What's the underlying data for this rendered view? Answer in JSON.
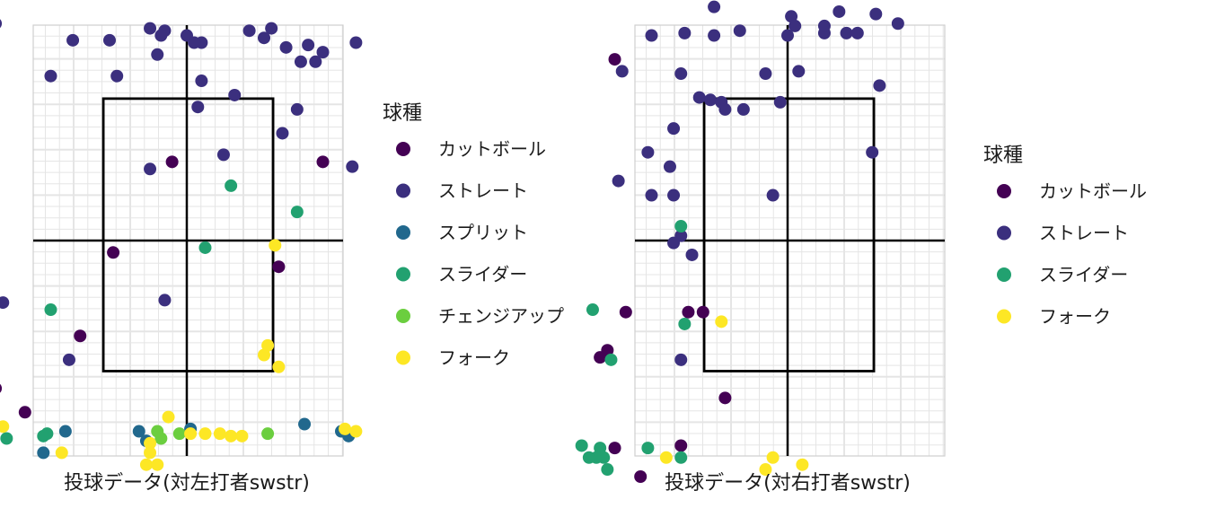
{
  "colors": {
    "カットボール": "#440154",
    "ストレート": "#3B2F7E",
    "スプリット": "#21688D",
    "スライダー": "#22A170",
    "チェンジアップ": "#6BCE3F",
    "フォーク": "#FDE725"
  },
  "chart_data": [
    {
      "type": "scatter",
      "xlabel": "投球データ(対左打者swstr)",
      "ylabel": "",
      "legend_title": "球種",
      "legend": [
        "カットボール",
        "ストレート",
        "スプリット",
        "スライダー",
        "チェンジアップ",
        "フォーク"
      ],
      "series": [
        {
          "name": "カットボール",
          "points": [
            [
              -2.9,
              0.65
            ],
            [
              -0.2,
              1.65
            ],
            [
              1.85,
              1.65
            ],
            [
              -1.0,
              -0.25
            ],
            [
              1.25,
              -0.55
            ],
            [
              -2.7,
              -1.25
            ],
            [
              -1.45,
              -2.0
            ],
            [
              -2.6,
              -3.1
            ],
            [
              -2.2,
              -3.6
            ]
          ]
        },
        {
          "name": "ストレート",
          "points": [
            [
              -2.6,
              4.55
            ],
            [
              -3.0,
              4.15
            ],
            [
              -1.55,
              4.2
            ],
            [
              -1.05,
              4.2
            ],
            [
              -0.5,
              4.45
            ],
            [
              -0.3,
              4.4
            ],
            [
              0.0,
              4.3
            ],
            [
              -0.35,
              4.3
            ],
            [
              0.2,
              4.15
            ],
            [
              0.1,
              4.15
            ],
            [
              0.85,
              4.4
            ],
            [
              1.05,
              4.25
            ],
            [
              1.15,
              4.45
            ],
            [
              1.35,
              4.05
            ],
            [
              1.65,
              4.1
            ],
            [
              1.85,
              3.95
            ],
            [
              2.3,
              4.15
            ],
            [
              1.55,
              3.75
            ],
            [
              1.75,
              3.75
            ],
            [
              -0.4,
              3.9
            ],
            [
              -1.85,
              3.45
            ],
            [
              -0.95,
              3.45
            ],
            [
              0.2,
              3.35
            ],
            [
              0.65,
              3.05
            ],
            [
              0.15,
              2.8
            ],
            [
              1.5,
              2.75
            ],
            [
              1.3,
              2.25
            ],
            [
              0.5,
              1.8
            ],
            [
              -0.5,
              1.5
            ],
            [
              2.25,
              1.55
            ],
            [
              -0.3,
              -1.25
            ],
            [
              -2.5,
              -1.3
            ],
            [
              -1.6,
              -2.5
            ]
          ]
        },
        {
          "name": "スプリット",
          "points": [
            [
              -1.65,
              -4.0
            ],
            [
              -0.65,
              -4.0
            ],
            [
              -0.55,
              -4.2
            ],
            [
              0.05,
              -3.95
            ],
            [
              1.6,
              -3.85
            ],
            [
              2.1,
              -4.0
            ],
            [
              2.2,
              -4.1
            ],
            [
              -1.95,
              -4.45
            ]
          ]
        },
        {
          "name": "スライダー",
          "points": [
            [
              -3.6,
              1.75
            ],
            [
              0.6,
              1.15
            ],
            [
              1.5,
              0.6
            ],
            [
              0.25,
              -0.15
            ],
            [
              -1.85,
              -1.45
            ],
            [
              -3.2,
              -3.2
            ],
            [
              -3.1,
              -3.15
            ],
            [
              -2.45,
              -4.15
            ],
            [
              -1.9,
              -4.05
            ],
            [
              -1.95,
              -4.1
            ]
          ]
        },
        {
          "name": "チェンジアップ",
          "points": [
            [
              1.1,
              -4.05
            ],
            [
              -0.1,
              -4.05
            ],
            [
              -0.35,
              -4.15
            ],
            [
              -0.4,
              -4.0
            ]
          ]
        },
        {
          "name": "フォーク",
          "points": [
            [
              1.2,
              -0.1
            ],
            [
              1.25,
              -2.65
            ],
            [
              1.1,
              -2.2
            ],
            [
              1.05,
              -2.4
            ],
            [
              -2.5,
              -3.9
            ],
            [
              -0.25,
              -3.7
            ],
            [
              0.05,
              -4.05
            ],
            [
              0.25,
              -4.05
            ],
            [
              0.45,
              -4.05
            ],
            [
              0.6,
              -4.1
            ],
            [
              0.75,
              -4.1
            ],
            [
              2.15,
              -3.95
            ],
            [
              2.3,
              -4.0
            ],
            [
              -1.7,
              -4.45
            ],
            [
              -0.5,
              -4.25
            ],
            [
              -0.5,
              -4.45
            ],
            [
              -0.55,
              -4.7
            ],
            [
              -0.4,
              -4.7
            ]
          ]
        }
      ]
    },
    {
      "type": "scatter",
      "xlabel": "投球データ(対右打者swstr)",
      "ylabel": "",
      "legend_title": "球種",
      "legend": [
        "カットボール",
        "ストレート",
        "スライダー",
        "フォーク"
      ],
      "series": [
        {
          "name": "カットボール",
          "points": [
            [
              -2.35,
              3.8
            ],
            [
              -2.2,
              -1.5
            ],
            [
              -1.35,
              -1.5
            ],
            [
              -1.15,
              -1.5
            ],
            [
              -2.45,
              -2.3
            ],
            [
              -2.55,
              -2.45
            ],
            [
              -0.85,
              -3.3
            ],
            [
              -1.45,
              -4.3
            ],
            [
              -2.35,
              -4.35
            ],
            [
              -2.0,
              -4.95
            ]
          ]
        },
        {
          "name": "ストレート",
          "points": [
            [
              -1.0,
              4.9
            ],
            [
              0.05,
              4.7
            ],
            [
              0.7,
              4.8
            ],
            [
              1.2,
              4.75
            ],
            [
              1.5,
              4.55
            ],
            [
              -1.85,
              4.3
            ],
            [
              -1.4,
              4.35
            ],
            [
              -1.0,
              4.3
            ],
            [
              -0.65,
              4.4
            ],
            [
              0.0,
              4.3
            ],
            [
              0.1,
              4.5
            ],
            [
              0.5,
              4.35
            ],
            [
              0.5,
              4.5
            ],
            [
              0.8,
              4.35
            ],
            [
              0.95,
              4.35
            ],
            [
              -2.25,
              3.55
            ],
            [
              -1.45,
              3.5
            ],
            [
              -0.3,
              3.5
            ],
            [
              0.15,
              3.55
            ],
            [
              1.25,
              3.25
            ],
            [
              -1.2,
              3.0
            ],
            [
              -1.05,
              2.95
            ],
            [
              -0.9,
              2.9
            ],
            [
              -0.85,
              2.75
            ],
            [
              -0.6,
              2.75
            ],
            [
              -0.1,
              2.9
            ],
            [
              -1.55,
              2.35
            ],
            [
              -1.9,
              1.85
            ],
            [
              -1.6,
              1.55
            ],
            [
              -2.3,
              1.25
            ],
            [
              1.15,
              1.85
            ],
            [
              -1.85,
              0.95
            ],
            [
              -1.55,
              0.95
            ],
            [
              -0.2,
              0.95
            ],
            [
              -1.45,
              0.1
            ],
            [
              -1.55,
              -0.05
            ],
            [
              -1.3,
              -0.3
            ],
            [
              -1.45,
              -2.5
            ]
          ]
        },
        {
          "name": "スライダー",
          "points": [
            [
              -1.45,
              0.3
            ],
            [
              -2.65,
              -1.45
            ],
            [
              -1.4,
              -1.75
            ],
            [
              -2.4,
              -2.5
            ],
            [
              -2.8,
              -4.3
            ],
            [
              -2.55,
              -4.35
            ],
            [
              -2.5,
              -4.55
            ],
            [
              -2.6,
              -4.55
            ],
            [
              -2.7,
              -4.55
            ],
            [
              -1.9,
              -4.35
            ],
            [
              -1.45,
              -4.55
            ],
            [
              -2.45,
              -4.8
            ]
          ]
        },
        {
          "name": "フォーク",
          "points": [
            [
              -0.9,
              -1.7
            ],
            [
              -1.65,
              -4.55
            ],
            [
              -0.2,
              -4.55
            ],
            [
              0.2,
              -4.7
            ],
            [
              -0.3,
              -4.8
            ]
          ]
        }
      ]
    }
  ]
}
